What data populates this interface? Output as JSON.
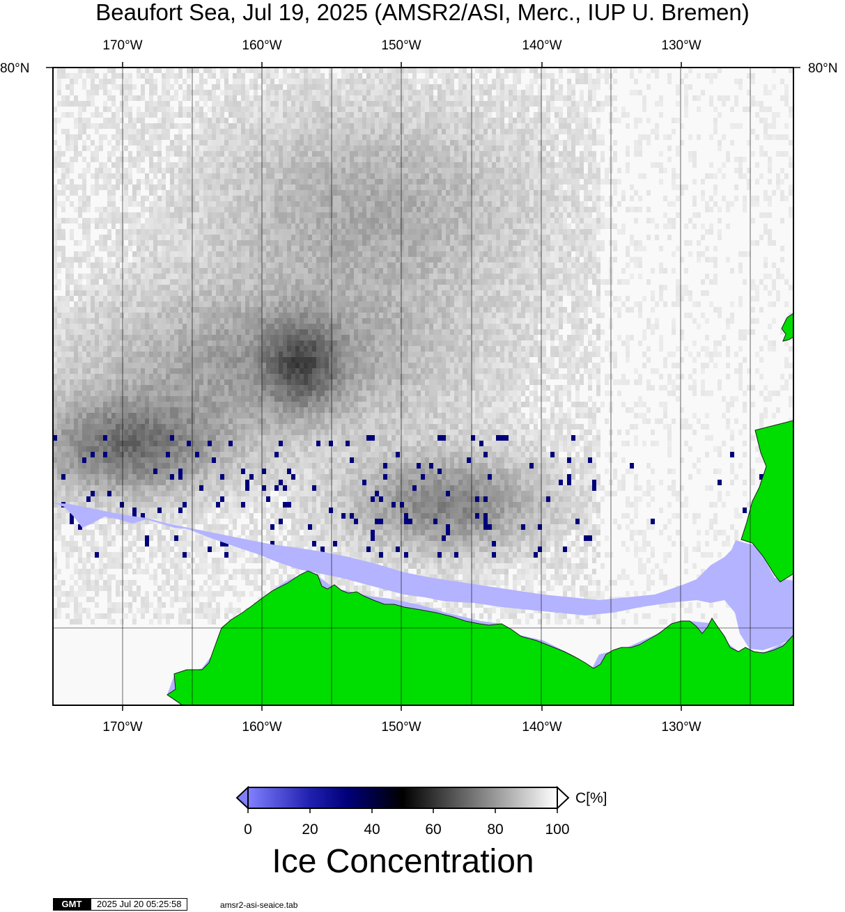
{
  "title": "Beaufort Sea, Jul 19, 2025 (AMSR2/ASI, Merc., IUP U. Bremen)",
  "lon_labels": [
    "170°W",
    "160°W",
    "150°W",
    "140°W",
    "130°W"
  ],
  "lat_label": "80°N",
  "colorbar": {
    "ticks": [
      "0",
      "20",
      "40",
      "60",
      "80",
      "100"
    ],
    "unit": "C[%]",
    "label": "Ice Concentration",
    "stops": [
      "#8080ff",
      "#00007a",
      "#000000",
      "#ffffff"
    ]
  },
  "colors": {
    "water": "#b3b3ff",
    "land": "#00dd00",
    "frame": "#000000"
  },
  "footer": {
    "logo": "GMT",
    "timestamp": "2025 Jul 20 05:25:58",
    "source": "amsr2-asi-seaice.tab"
  }
}
